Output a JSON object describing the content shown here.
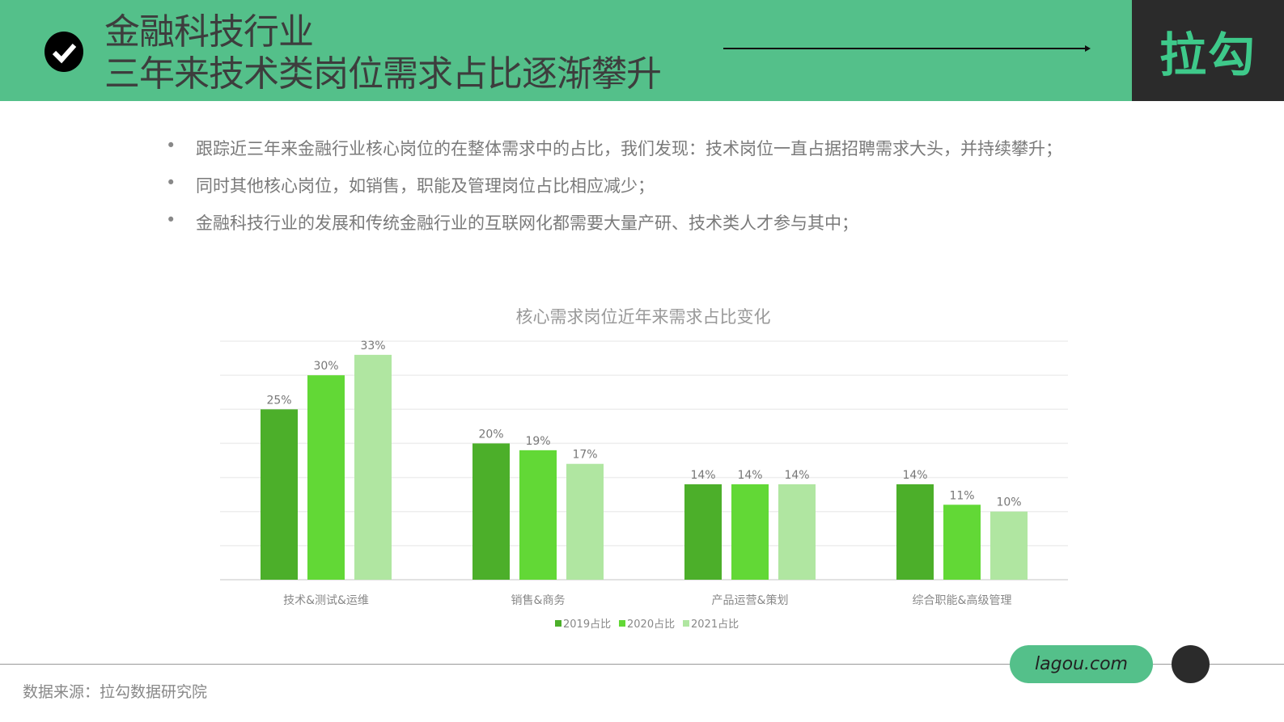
{
  "header": {
    "title_line1": "金融科技行业",
    "title_line2": "三年来技术类岗位需求占比逐渐攀升",
    "logo": "拉勾",
    "icon": "check-circle-icon"
  },
  "bullets": [
    "跟踪近三年来金融行业核心岗位的在整体需求中的占比，我们发现：技术岗位一直占据招聘需求大头，并持续攀升；",
    "同时其他核心岗位，如销售，职能及管理岗位占比相应减少；",
    "金融科技行业的发展和传统金融行业的互联网化都需要大量产研、技术类人才参与其中；"
  ],
  "chart_data": {
    "type": "bar",
    "title": "核心需求岗位近年来需求占比变化",
    "categories": [
      "技术&测试&运维",
      "销售&商务",
      "产品运营&策划",
      "综合职能&高级管理"
    ],
    "series": [
      {
        "name": "2019占比",
        "color": "#4caf2a",
        "values": [
          25,
          20,
          14,
          14
        ],
        "labels": [
          "25%",
          "20%",
          "14%",
          "14%"
        ]
      },
      {
        "name": "2020占比",
        "color": "#62d836",
        "values": [
          30,
          19,
          14,
          11
        ],
        "labels": [
          "30%",
          "19%",
          "14%",
          "11%"
        ]
      },
      {
        "name": "2021占比",
        "color": "#b0e6a1",
        "values": [
          33,
          17,
          14,
          10
        ],
        "labels": [
          "33%",
          "17%",
          "14%",
          "10%"
        ]
      }
    ],
    "ylim": [
      0,
      35
    ],
    "grid": true,
    "legend": "bottom",
    "xlabel": "",
    "ylabel": ""
  },
  "footer": {
    "url": "lagou.com",
    "source": "数据来源：拉勾数据研究院"
  }
}
